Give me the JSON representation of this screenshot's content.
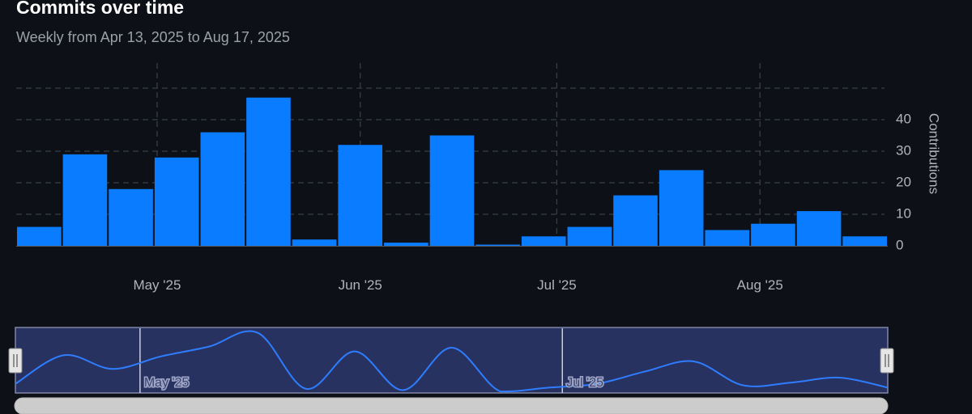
{
  "title": "Commits over time",
  "subtitle": "Weekly from Apr 13, 2025 to Aug 17, 2025",
  "colors": {
    "background": "#0d1117",
    "bar": "#0a7cff",
    "grid": "#3a3d44",
    "navigator_fill": "#283260",
    "navigator_line": "#2f7dff",
    "scrollbar": "#cccccc"
  },
  "chart_data": {
    "type": "bar",
    "x": [
      "2025-04-13",
      "2025-04-20",
      "2025-04-27",
      "2025-05-04",
      "2025-05-11",
      "2025-05-18",
      "2025-05-25",
      "2025-06-01",
      "2025-06-08",
      "2025-06-15",
      "2025-06-22",
      "2025-06-29",
      "2025-07-06",
      "2025-07-13",
      "2025-07-20",
      "2025-07-27",
      "2025-08-03",
      "2025-08-10",
      "2025-08-17"
    ],
    "values": [
      6,
      29,
      18,
      28,
      36,
      47,
      2,
      32,
      1,
      35,
      0,
      3,
      6,
      16,
      24,
      5,
      7,
      11,
      3
    ],
    "ylabel": "Contributions",
    "ylim": [
      0,
      50
    ],
    "yticks": [
      0,
      10,
      20,
      30,
      40
    ],
    "yaxis_position": "right",
    "xtick_labels": [
      {
        "date": "2025-05-01",
        "label": "May '25"
      },
      {
        "date": "2025-06-01",
        "label": "Jun '25"
      },
      {
        "date": "2025-07-01",
        "label": "Jul '25"
      },
      {
        "date": "2025-08-01",
        "label": "Aug '25"
      }
    ],
    "grid": true,
    "legend": "none"
  },
  "navigator": {
    "labels": [
      {
        "date": "2025-05-01",
        "label": "May '25"
      },
      {
        "date": "2025-07-01",
        "label": "Jul '25"
      }
    ]
  }
}
